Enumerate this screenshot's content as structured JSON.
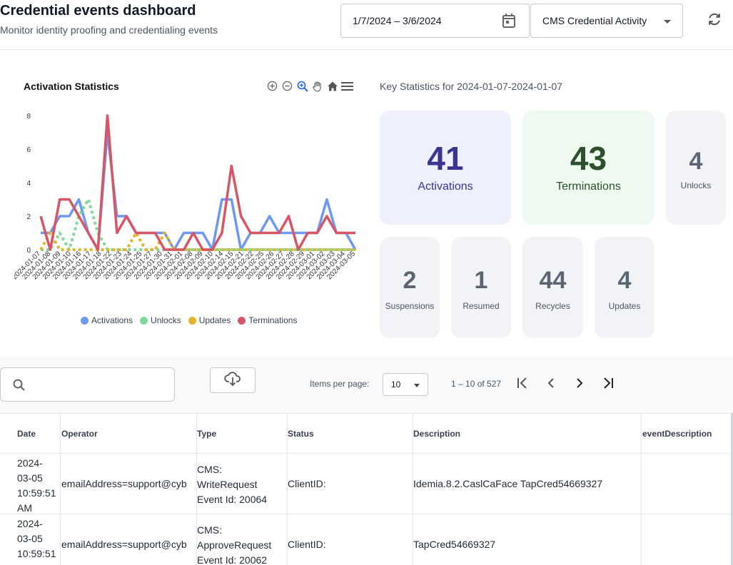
{
  "header": {
    "title": "Credential events dashboard",
    "subtitle": "Monitor identity proofing and credentialing events",
    "date_range": "1/7/2024 – 3/6/2024",
    "event_filter": "CMS Credential Activity"
  },
  "chart_panel": {
    "title": "Activation Statistics"
  },
  "chart_data": {
    "type": "line",
    "title": "Activation Statistics",
    "ylim": [
      0,
      8
    ],
    "yticks": [
      "0",
      "2",
      "4",
      "6",
      "8"
    ],
    "grid": false,
    "legend_position": "bottom",
    "x": [
      "2024-01-07",
      "2024-01-08",
      "2024-01-09",
      "2024-01-10",
      "2024-01-11",
      "2024-01-16",
      "2024-01-17",
      "2024-01-18",
      "2024-01-22",
      "2024-01-23",
      "2024-01-24",
      "2024-01-25",
      "2024-01-26",
      "2024-01-27",
      "2024-01-30",
      "2024-01-31",
      "2024-02-01",
      "2024-02-08",
      "2024-02-09",
      "2024-02-10",
      "2024-02-14",
      "2024-02-15",
      "2024-02-21",
      "2024-02-22",
      "2024-02-25",
      "2024-02-26",
      "2024-02-27",
      "2024-02-28",
      "2024-02-29",
      "2024-03-01",
      "2024-03-02",
      "2024-03-03",
      "2024-03-04",
      "2024-03-05"
    ],
    "xtick_labels": [
      "2024-01-07",
      "2024-01-08",
      "2024-01-09",
      "2024-01-10",
      "2024-01-16",
      "2024-01-17",
      "2024-01-18",
      "2024-01-22",
      "2024-01-23",
      "2024-01-24",
      "2024-01-25",
      "2024-01-27",
      "2024-01-30",
      "2024-01-31",
      "2024-02-01",
      "2024-02-08",
      "2024-02-09",
      "2024-02-10",
      "2024-02-14",
      "2024-02-15",
      "2024-02-21",
      "2024-02-22",
      "2024-02-25",
      "2024-02-26",
      "2024-02-27",
      "2024-02-28",
      "2024-02-29",
      "2024-03-01",
      "2024-03-02",
      "2024-03-03",
      "2024-03-04",
      "2024-03-05"
    ],
    "series": [
      {
        "name": "Activations",
        "color": "#6d98f3",
        "dashed": false,
        "values": [
          1,
          1,
          2,
          2,
          3,
          1,
          0,
          7,
          2,
          2,
          1,
          1,
          1,
          1,
          0,
          1,
          1,
          1,
          0,
          3,
          3,
          0,
          1,
          1,
          2,
          1,
          1,
          1,
          1,
          1,
          3,
          1,
          1,
          0
        ]
      },
      {
        "name": "Unlocks",
        "color": "#7fd99a",
        "dashed": true,
        "values": [
          0,
          0,
          1,
          0,
          2,
          3,
          1,
          0,
          0,
          0,
          0,
          0,
          0,
          0,
          0,
          0,
          0,
          0,
          0,
          0,
          0,
          0,
          0,
          0,
          0,
          0,
          0,
          0,
          0,
          0,
          0,
          0,
          0,
          0
        ]
      },
      {
        "name": "Updates",
        "color": "#e6b42c",
        "dashed": true,
        "values": [
          0,
          1,
          0,
          0,
          0,
          0,
          0,
          0,
          0,
          0,
          1,
          0,
          0,
          1,
          0,
          0,
          0,
          0,
          0,
          0,
          0,
          0,
          0,
          0,
          0,
          0,
          0,
          0,
          0,
          0,
          0,
          0,
          0,
          0
        ]
      },
      {
        "name": "Terminations",
        "color": "#d85565",
        "dashed": false,
        "values": [
          2,
          0,
          3,
          3,
          2,
          1,
          0,
          8,
          1,
          2,
          1,
          1,
          1,
          0,
          0,
          0,
          1,
          0,
          0,
          1,
          5,
          2,
          1,
          1,
          1,
          1,
          2,
          0,
          1,
          1,
          2,
          1,
          1,
          1
        ]
      }
    ]
  },
  "key_stats": {
    "title": "Key Statistics for 2024-01-07-2024-01-07",
    "activations": {
      "value": "41",
      "label": "Activations"
    },
    "terminations": {
      "value": "43",
      "label": "Terminations"
    },
    "unlocks": {
      "value": "4",
      "label": "Unlocks"
    },
    "suspensions": {
      "value": "2",
      "label": "Suspensions"
    },
    "resumed": {
      "value": "1",
      "label": "Resumed"
    },
    "recycles": {
      "value": "44",
      "label": "Recycles"
    },
    "updates": {
      "value": "4",
      "label": "Updates"
    }
  },
  "table_toolbar": {
    "search_placeholder": "",
    "items_per_page_label": "Items per page:",
    "items_per_page": "10",
    "range_label": "1 – 10 of 527"
  },
  "table": {
    "columns": [
      "Date",
      "Operator",
      "Type",
      "Status",
      "Description",
      "eventDescription"
    ],
    "rows": [
      {
        "date": [
          "2024-",
          "03-05",
          "10:59:51",
          "AM"
        ],
        "operator": "emailAddress=support@cyb",
        "type": [
          "CMS:",
          "WriteRequest",
          "Event Id: 20064"
        ],
        "status": "ClientID:",
        "description": "Idemia.8.2.CaslCaFace TapCred54669327",
        "event_description": ""
      },
      {
        "date": [
          "2024-",
          "03-05",
          "10:59:51",
          "AM"
        ],
        "operator": "emailAddress=support@cyb",
        "type": [
          "CMS:",
          "ApproveRequest",
          "Event Id: 20062"
        ],
        "status": "ClientID:",
        "description": "TapCred54669327",
        "event_description": ""
      }
    ]
  }
}
